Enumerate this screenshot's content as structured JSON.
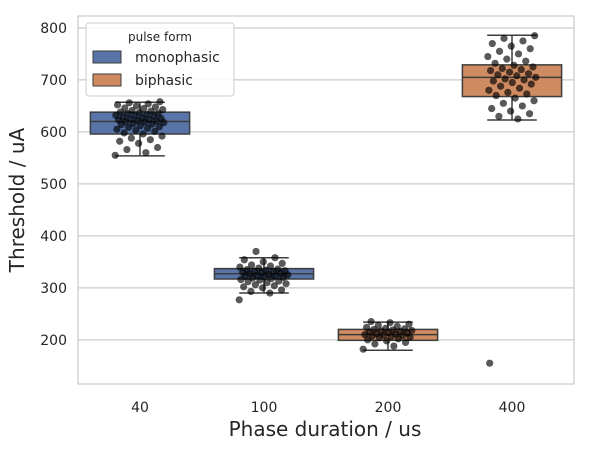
{
  "chart_data": {
    "type": "box",
    "xlabel": "Phase duration / us",
    "ylabel": "Threshold / uA",
    "categories": [
      "40",
      "100",
      "200",
      "400"
    ],
    "yticks": [
      200,
      300,
      400,
      500,
      600,
      700,
      800
    ],
    "ylim": [
      115,
      823
    ],
    "grid": "horizontal",
    "legend": {
      "title": "pulse form",
      "placement": "top-left",
      "entries": [
        {
          "label": "monophasic",
          "color": "#5874a8"
        },
        {
          "label": "biphasic",
          "color": "#cf8b62"
        }
      ]
    },
    "boxes": [
      {
        "category": "40",
        "group": "monophasic",
        "whisker_low": 554,
        "q1": 596,
        "median": 620,
        "q3": 638,
        "whisker_high": 657,
        "outliers": []
      },
      {
        "category": "100",
        "group": "monophasic",
        "whisker_low": 290,
        "q1": 317,
        "median": 327,
        "q3": 337,
        "whisker_high": 358,
        "outliers": []
      },
      {
        "category": "200",
        "group": "biphasic",
        "whisker_low": 180,
        "q1": 199,
        "median": 210,
        "q3": 220,
        "whisker_high": 234,
        "outliers": []
      },
      {
        "category": "400",
        "group": "biphasic",
        "whisker_low": 623,
        "q1": 668,
        "median": 705,
        "q3": 729,
        "whisker_high": 786,
        "outliers": [
          155
        ]
      }
    ],
    "points": [
      {
        "category": "40",
        "values": [
          555,
          560,
          566,
          570,
          578,
          582,
          585,
          588,
          592,
          596,
          598,
          601,
          603,
          605,
          607,
          609,
          610,
          612,
          614,
          615,
          616,
          618,
          619,
          620,
          621,
          622,
          623,
          624,
          625,
          626,
          627,
          628,
          630,
          631,
          632,
          633,
          635,
          636,
          637,
          638,
          640,
          641,
          643,
          645,
          646,
          648,
          650,
          652,
          654,
          656,
          658
        ]
      },
      {
        "category": "100",
        "values": [
          277,
          290,
          293,
          296,
          300,
          302,
          304,
          306,
          308,
          310,
          312,
          313,
          315,
          316,
          318,
          319,
          320,
          321,
          322,
          323,
          324,
          325,
          326,
          327,
          328,
          329,
          330,
          331,
          332,
          333,
          334,
          335,
          336,
          338,
          340,
          342,
          344,
          347,
          350,
          354,
          358,
          370
        ]
      },
      {
        "category": "200",
        "values": [
          182,
          188,
          192,
          195,
          198,
          200,
          202,
          204,
          205,
          206,
          207,
          208,
          209,
          210,
          211,
          212,
          213,
          214,
          215,
          216,
          217,
          218,
          219,
          220,
          221,
          222,
          224,
          226,
          228,
          230,
          233,
          235
        ]
      },
      {
        "category": "400",
        "values": [
          155,
          625,
          630,
          635,
          640,
          645,
          650,
          655,
          660,
          665,
          670,
          673,
          676,
          680,
          684,
          688,
          692,
          695,
          698,
          700,
          702,
          705,
          708,
          710,
          712,
          715,
          718,
          720,
          722,
          725,
          728,
          732,
          736,
          740,
          745,
          750,
          755,
          760,
          765,
          770,
          775,
          780,
          785
        ]
      }
    ]
  }
}
